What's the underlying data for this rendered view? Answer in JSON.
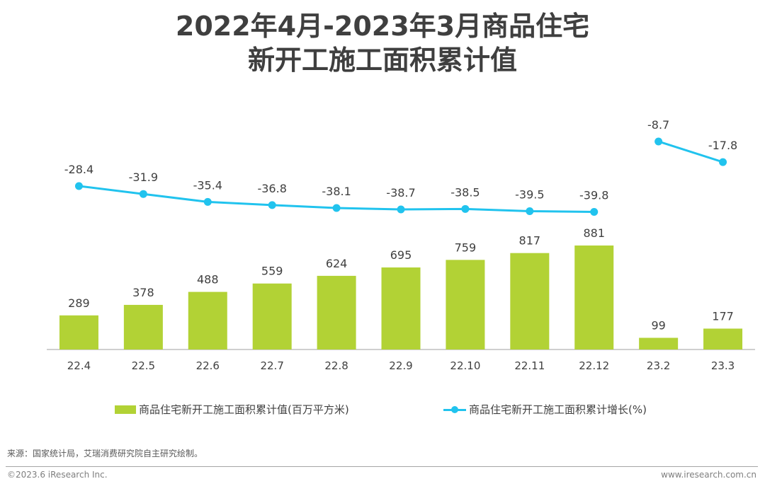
{
  "title_line1": "2022年4月-2023年3月商品住宅",
  "title_line2": "新开工施工面积累计值",
  "chart_data": {
    "type": "bar+line",
    "title": "2022年4月-2023年3月商品住宅新开工施工面积累计值",
    "categories": [
      "22.4",
      "22.5",
      "22.6",
      "22.7",
      "22.8",
      "22.9",
      "22.10",
      "22.11",
      "22.12",
      "23.2",
      "23.3"
    ],
    "series": [
      {
        "name": "商品住宅新开工施工面积累计值(百万平方米)",
        "type": "bar",
        "color": "#b2d235",
        "values": [
          289,
          378,
          488,
          559,
          624,
          695,
          759,
          817,
          881,
          99,
          177
        ]
      },
      {
        "name": "商品住宅新开工施工面积累计增长(%)",
        "type": "line",
        "color": "#21c3ee",
        "values": [
          -28.4,
          -31.9,
          -35.4,
          -36.8,
          -38.1,
          -38.7,
          -38.5,
          -39.5,
          -39.8,
          -8.7,
          -17.8
        ],
        "segments": [
          [
            0,
            8
          ],
          [
            9,
            10
          ]
        ]
      }
    ],
    "xlabel": "",
    "ylabel": "",
    "grid": false,
    "legend_position": "bottom"
  },
  "legend": {
    "bar_label": "商品住宅新开工施工面积累计值(百万平方米)",
    "line_label": "商品住宅新开工施工面积累计增长(%)"
  },
  "footer": {
    "source": "来源：国家统计局，艾瑞消费研究院自主研究绘制。",
    "copyright": "©2023.6 iResearch Inc.",
    "website": "www.iresearch.com.cn"
  }
}
